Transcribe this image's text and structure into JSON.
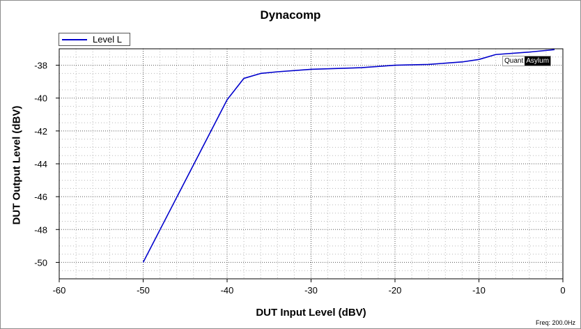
{
  "chart_data": {
    "type": "line",
    "title": "Dynacomp",
    "xlabel": "DUT Input Level (dBV)",
    "ylabel": "DUT Output Level (dBV)",
    "xlim": [
      -60,
      0
    ],
    "ylim": [
      -51,
      -37
    ],
    "xticks": [
      -60,
      -50,
      -40,
      -30,
      -20,
      -10,
      0
    ],
    "yticks": [
      -50,
      -48,
      -46,
      -44,
      -42,
      -40,
      -38
    ],
    "grid": true,
    "legend_position": "top-left",
    "series": [
      {
        "name": "Level L",
        "color": "#0000cc",
        "x": [
          -50,
          -40,
          -38,
          -36,
          -34,
          -30,
          -24,
          -20,
          -16,
          -12,
          -10,
          -8,
          -4,
          -1
        ],
        "y": [
          -50,
          -40.1,
          -38.8,
          -38.5,
          -38.4,
          -38.25,
          -38.15,
          -38.0,
          -37.95,
          -37.8,
          -37.65,
          -37.35,
          -37.2,
          -37.05
        ]
      }
    ]
  },
  "branding": {
    "part1": "Quant",
    "part2": "Asylum"
  },
  "footer": {
    "freq": "Freq: 200.0Hz"
  }
}
